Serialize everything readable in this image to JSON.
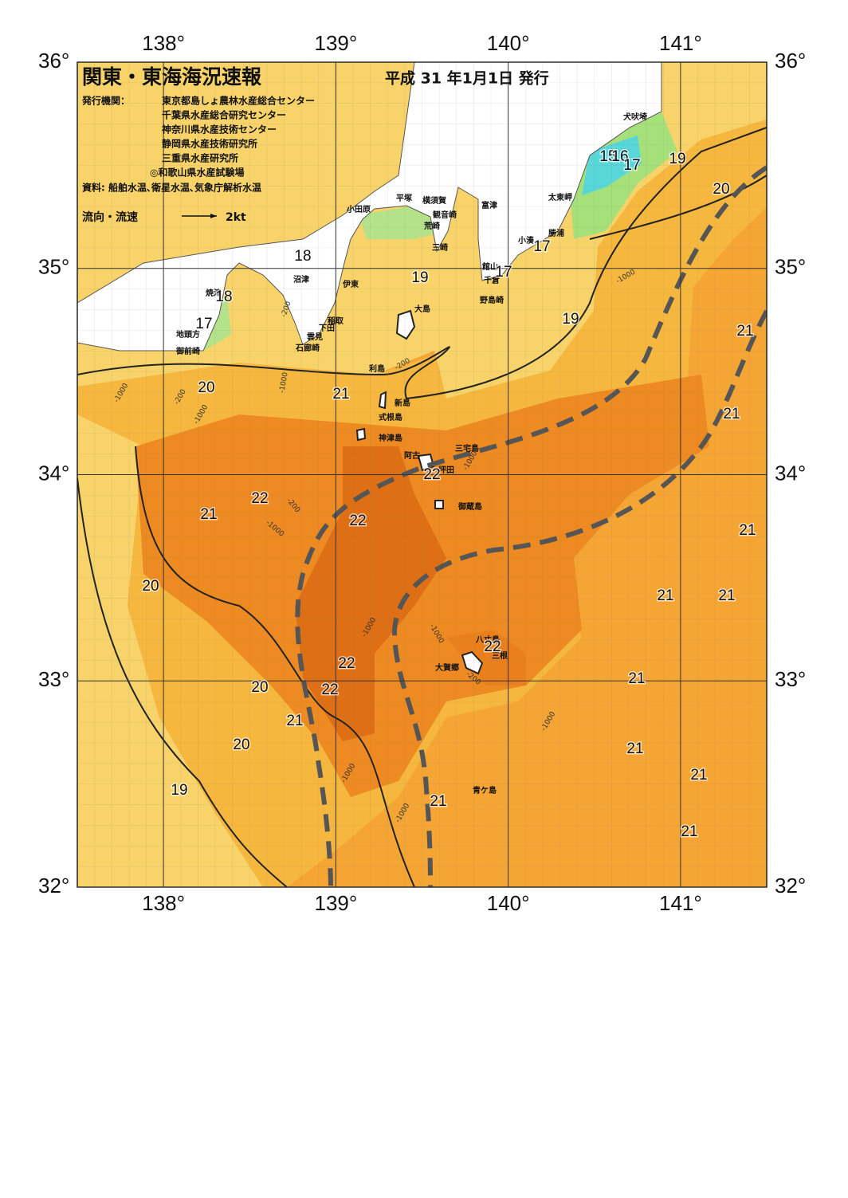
{
  "header": {
    "title": "関東・東海海況速報",
    "date": "平成 31 年1月1日 発行",
    "issuer_label": "発行機関：",
    "issuers": [
      "東京都島しょ農林水産総合センター",
      "千葉県水産総合研究センター",
      "神奈川県水産技術センター",
      "静岡県水産技術研究所",
      "三重県水産研究所",
      "◎和歌山県水産試験場"
    ],
    "sources": "資料: 船舶水温､衛星水温､気象庁解析水温",
    "legend_label": "流向・流速",
    "legend_scale": "2kt"
  },
  "map": {
    "xlim": [
      137.5,
      141.5
    ],
    "ylim": [
      32,
      36
    ],
    "xticks": [
      {
        "value": 138,
        "label": "138°"
      },
      {
        "value": 139,
        "label": "139°"
      },
      {
        "value": 140,
        "label": "140°"
      },
      {
        "value": 141,
        "label": "141°"
      }
    ],
    "yticks": [
      {
        "value": 32,
        "label": "32°"
      },
      {
        "value": 33,
        "label": "33°"
      },
      {
        "value": 34,
        "label": "34°"
      },
      {
        "value": 35,
        "label": "35°"
      },
      {
        "value": 36,
        "label": "36°"
      }
    ],
    "place_names": [
      "犬吠埼",
      "太東岬",
      "勝浦",
      "小湊",
      "館山",
      "千倉",
      "野島崎",
      "富津",
      "観音崎",
      "横須賀",
      "平塚",
      "荒崎",
      "三崎",
      "小田原",
      "沼津",
      "伊東",
      "稲取",
      "下田",
      "雲見",
      "石廊崎",
      "焼津",
      "地頭方",
      "御前崎",
      "大島",
      "利島",
      "新島",
      "式根島",
      "神津島",
      "三宅島",
      "阿古",
      "坪田",
      "御蔵島",
      "八丈島",
      "三根",
      "大賀郷",
      "青ケ島"
    ],
    "isotherm_labels": [
      15,
      16,
      17,
      19,
      20,
      18,
      17,
      17,
      19,
      18,
      17,
      19,
      21,
      20,
      21,
      21,
      22,
      22,
      21,
      22,
      21,
      20,
      21,
      21,
      22,
      22,
      21,
      20,
      22,
      21,
      20,
      21,
      21,
      19,
      21,
      21
    ],
    "isobath_labels": [
      "-1000",
      "-200",
      "-1000",
      "-200",
      "-1000",
      "-1000",
      "-200",
      "-1000",
      "-1000",
      "-1000",
      "-1000",
      "-1000",
      "-200",
      "-200",
      "-1000",
      "-1000"
    ]
  }
}
